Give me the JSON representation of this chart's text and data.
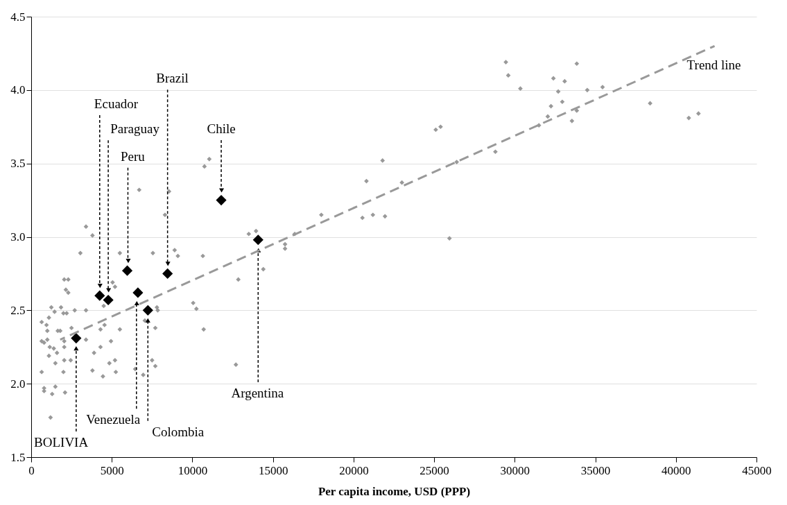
{
  "chart_data": {
    "type": "scatter",
    "xlabel": "Per capita income, USD (PPP)",
    "xlim": [
      0,
      45000
    ],
    "xticks": [
      0,
      5000,
      10000,
      15000,
      20000,
      25000,
      30000,
      35000,
      40000,
      45000
    ],
    "ylim": [
      1.5,
      4.5
    ],
    "yticks": [
      1.5,
      {
        "value": 2,
        "label": "2.0"
      },
      2.5,
      {
        "value": 3,
        "label": "3.0"
      },
      3.5,
      {
        "value": 4,
        "label": "4.0"
      },
      4.5
    ],
    "grid": "y",
    "series": [
      {
        "marker": "diamond",
        "color": "#999999",
        "x": [
          6700,
          8550,
          8300,
          3400,
          3800,
          3050,
          5500,
          7550,
          8900,
          9100,
          10650,
          2050,
          2300,
          2150,
          2300,
          5050,
          5200,
          4500,
          1250,
          1850,
          1450,
          2000,
          2200,
          2700,
          3400,
          7800,
          7850,
          10050,
          10250,
          10700,
          650,
          1100,
          950,
          1000,
          1650,
          1800,
          2500,
          4300,
          4550,
          5500,
          7050,
          7700,
          650,
          800,
          1000,
          1150,
          1400,
          2050,
          2050,
          3400,
          1100,
          1600,
          2050,
          2450,
          3900,
          4300,
          4950,
          1500,
          4850,
          5200,
          7500,
          7700,
          650,
          2000,
          3800,
          5250,
          6450,
          4450,
          6950,
          800,
          800,
          1500,
          1300,
          2100,
          1200,
          10750,
          11050,
          21800,
          20800,
          23000,
          18000,
          20550,
          21200,
          21950,
          13500,
          13950,
          16350,
          15750,
          15750,
          14400,
          12850,
          12700,
          29450,
          29600,
          30350,
          33850,
          32400,
          33100,
          32700,
          34500,
          35450,
          32950,
          32250,
          33850,
          32050,
          33550,
          31500,
          38400,
          40800,
          41400,
          25100,
          25400,
          26400,
          28800,
          25950
        ],
        "values": [
          3.32,
          3.31,
          3.15,
          3.07,
          3.01,
          2.89,
          2.89,
          2.89,
          2.91,
          2.87,
          2.87,
          2.71,
          2.71,
          2.64,
          2.62,
          2.69,
          2.66,
          2.53,
          2.52,
          2.52,
          2.49,
          2.48,
          2.48,
          2.5,
          2.5,
          2.52,
          2.5,
          2.55,
          2.51,
          2.37,
          2.42,
          2.45,
          2.4,
          2.36,
          2.36,
          2.36,
          2.38,
          2.37,
          2.4,
          2.37,
          2.43,
          2.38,
          2.29,
          2.28,
          2.3,
          2.25,
          2.24,
          2.29,
          2.25,
          2.3,
          2.19,
          2.21,
          2.16,
          2.16,
          2.21,
          2.25,
          2.29,
          2.14,
          2.14,
          2.16,
          2.16,
          2.12,
          2.08,
          2.08,
          2.09,
          2.08,
          2.1,
          2.05,
          2.06,
          1.97,
          1.95,
          1.98,
          1.93,
          1.94,
          1.77,
          3.48,
          3.53,
          3.52,
          3.38,
          3.37,
          3.15,
          3.13,
          3.15,
          3.14,
          3.02,
          3.04,
          3.02,
          2.95,
          2.92,
          2.78,
          2.71,
          2.13,
          4.19,
          4.1,
          4.01,
          4.18,
          4.08,
          4.06,
          3.99,
          4.0,
          4.02,
          3.92,
          3.89,
          3.86,
          3.82,
          3.79,
          3.76,
          3.91,
          3.81,
          3.84,
          3.73,
          3.75,
          3.51,
          3.58,
          2.99
        ]
      },
      {
        "marker": "diamond",
        "color": "#000000",
        "x": [
          4250,
          4780,
          5960,
          8460,
          11790,
          14080,
          6620,
          7240,
          2790
        ],
        "values": [
          2.6,
          2.57,
          2.77,
          2.75,
          3.25,
          2.98,
          2.62,
          2.5,
          2.31
        ]
      },
      {
        "type": "line",
        "name": "Trend line",
        "color": "#999999",
        "line_style": "dashed",
        "x": [
          1800,
          42400
        ],
        "values": [
          2.3,
          4.3
        ]
      }
    ],
    "annotations": [
      {
        "text": "Ecuador",
        "x": 4250,
        "y": 2.65
      },
      {
        "text": "Paraguay",
        "x": 4780,
        "y": 2.62
      },
      {
        "text": "Peru",
        "x": 6000,
        "y": 2.82
      },
      {
        "text": "Brazil",
        "x": 8460,
        "y": 2.8
      },
      {
        "text": "Chile",
        "x": 11790,
        "y": 3.3
      },
      {
        "text": "Argentina",
        "x": 14080,
        "y": 2.93
      },
      {
        "text": "Venezuela",
        "x": 6530,
        "y": 2.57
      },
      {
        "text": "Colombia",
        "x": 7240,
        "y": 2.45
      },
      {
        "text": "BOLIVIA",
        "x": 2790,
        "y": 2.26
      }
    ]
  }
}
